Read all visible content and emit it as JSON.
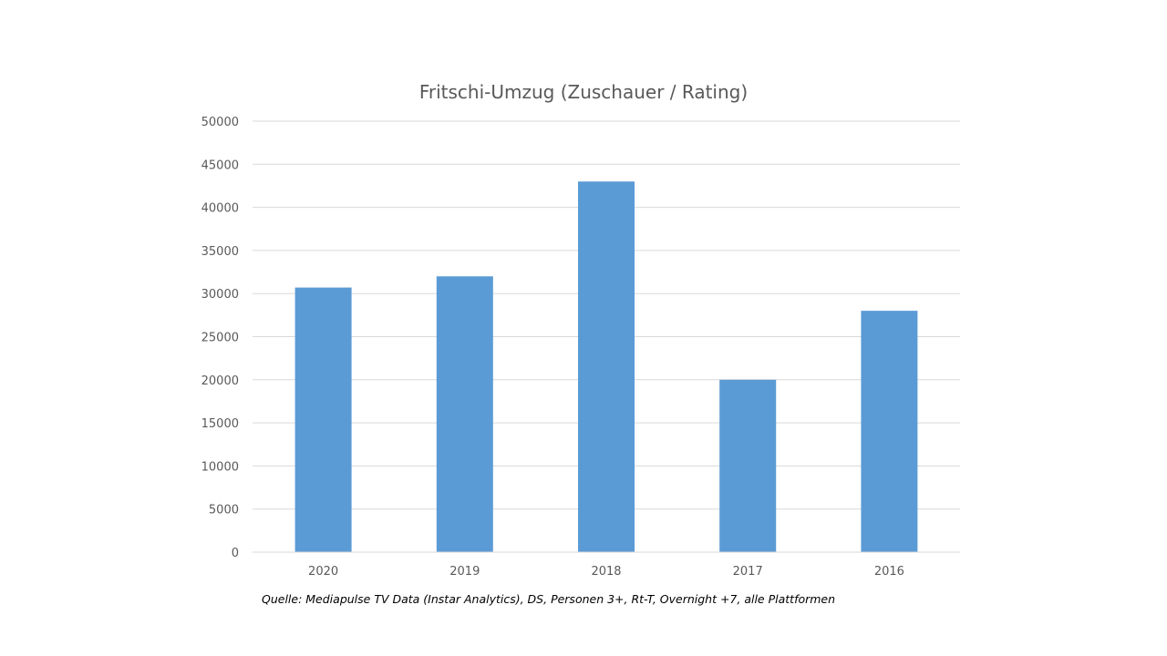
{
  "chart_data": {
    "type": "bar",
    "title": "Fritschi-Umzug (Zuschauer / Rating)",
    "categories": [
      "2020",
      "2019",
      "2018",
      "2017",
      "2016"
    ],
    "values": [
      30700,
      32000,
      43000,
      20000,
      28000
    ],
    "ylim": [
      0,
      50000
    ],
    "yticks": [
      "0",
      "5000",
      "10000",
      "15000",
      "20000",
      "25000",
      "30000",
      "35000",
      "40000",
      "45000",
      "50000"
    ],
    "xlabel": "",
    "ylabel": "",
    "grid": true,
    "legend": "none",
    "bar_color": "#5B9BD5",
    "gridline_color": "#D9D9D9"
  },
  "source_note": "Quelle: Mediapulse TV Data (Instar Analytics), DS, Personen 3+, Rt-T, Overnight +7, alle Plattformen"
}
